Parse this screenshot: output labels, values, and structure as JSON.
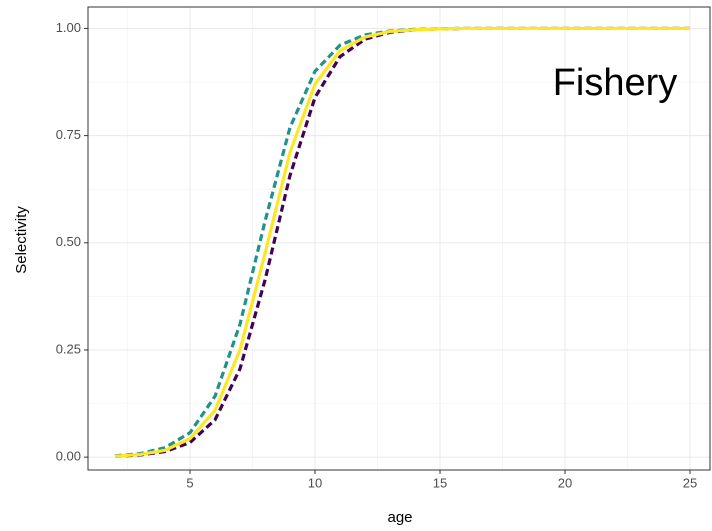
{
  "chart_data": {
    "type": "line",
    "xlabel": "age",
    "ylabel": "Selectivity",
    "annotation": "Fishery",
    "x": [
      2,
      3,
      4,
      5,
      6,
      7,
      8,
      9,
      10,
      11,
      12,
      13,
      14,
      15,
      16,
      17,
      18,
      19,
      20,
      21,
      22,
      23,
      24,
      25
    ],
    "series": [
      {
        "color": "#440154",
        "dash": true,
        "values": [
          0.002,
          0.005,
          0.013,
          0.034,
          0.087,
          0.206,
          0.413,
          0.657,
          0.839,
          0.934,
          0.975,
          0.991,
          0.997,
          0.999,
          1,
          1,
          1,
          1,
          1,
          1,
          1,
          1,
          1,
          1
        ]
      },
      {
        "color": "#21918c",
        "dash": true,
        "values": [
          0.003,
          0.008,
          0.022,
          0.057,
          0.142,
          0.31,
          0.55,
          0.769,
          0.9,
          0.961,
          0.985,
          0.994,
          0.998,
          0.999,
          1,
          1,
          1,
          1,
          1,
          1,
          1,
          1,
          1,
          1
        ]
      },
      {
        "color": "#fde725",
        "dash": false,
        "values": [
          0.002,
          0.006,
          0.016,
          0.043,
          0.109,
          0.25,
          0.475,
          0.711,
          0.87,
          0.948,
          0.98,
          0.993,
          0.997,
          0.999,
          1,
          1,
          1,
          1,
          1,
          1,
          1,
          1,
          1,
          1
        ]
      }
    ],
    "xlim": [
      0.92,
      25.8
    ],
    "ylim": [
      -0.03,
      1.05
    ],
    "xticks": [
      5,
      10,
      15,
      20,
      25
    ],
    "yticks": [
      {
        "value": 0,
        "label": "0.00"
      },
      {
        "value": 0.25,
        "label": "0.25"
      },
      {
        "value": 0.5,
        "label": "0.50"
      },
      {
        "value": 0.75,
        "label": "0.75"
      },
      {
        "value": 1,
        "label": "1.00"
      }
    ],
    "grid": true
  }
}
